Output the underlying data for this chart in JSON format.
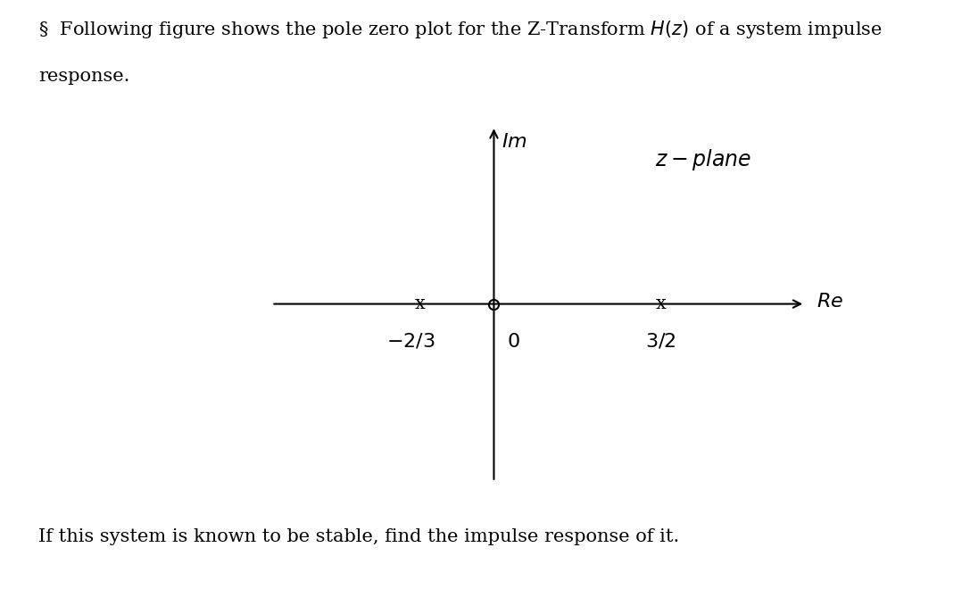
{
  "title_line1": "§  Following figure shows the pole zero plot for the Z-Transform $H(z)$ of a system impulse",
  "title_line2": "response.",
  "bottom_text": "If this system is known to be stable, find the impulse response of it.",
  "z_plane_label": "$z - plane$",
  "im_label": "$Im$",
  "re_label": "$Re$",
  "zero_x": 0,
  "zero_y": 0,
  "pole1_x": -0.667,
  "pole1_y": 0,
  "pole2_x": 1.5,
  "pole2_y": 0,
  "pole1_label": "$-2/3$",
  "pole2_label": "$3/2$",
  "origin_label": "$0$",
  "background_color": "#ffffff",
  "text_color": "#000000",
  "xlim": [
    -2.0,
    2.8
  ],
  "ylim": [
    -1.6,
    1.6
  ],
  "figsize": [
    10.87,
    6.88
  ],
  "dpi": 100
}
